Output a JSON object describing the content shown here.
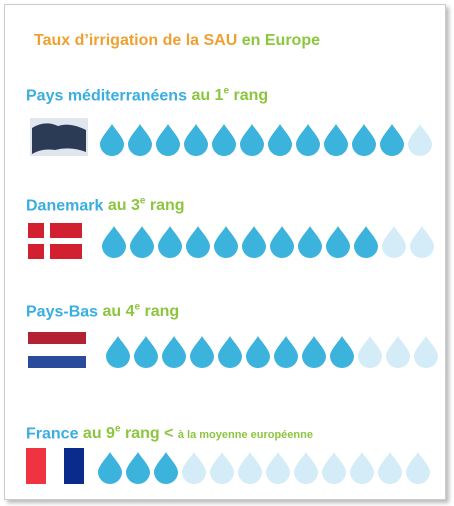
{
  "title": {
    "main": "Taux d’irrigation de la SAU",
    "rest": "en Europe"
  },
  "rows": [
    {
      "name": "Pays méditerranéens",
      "rank": "au 1",
      "sup": "e",
      "suffix": "rang",
      "filled": 11,
      "total": 12
    },
    {
      "name": "Danemark",
      "rank": "au 3",
      "sup": "e",
      "suffix": "rang",
      "filled": 10,
      "total": 12
    },
    {
      "name": "Pays-Bas",
      "rank": "au 4",
      "sup": "e",
      "suffix": "rang",
      "filled": 9,
      "total": 12
    },
    {
      "name": "France",
      "rank": "au 9",
      "sup": "e",
      "suffix": "rang <",
      "note": "à la moyenne européenne",
      "filled": 3,
      "total": 12
    }
  ]
}
